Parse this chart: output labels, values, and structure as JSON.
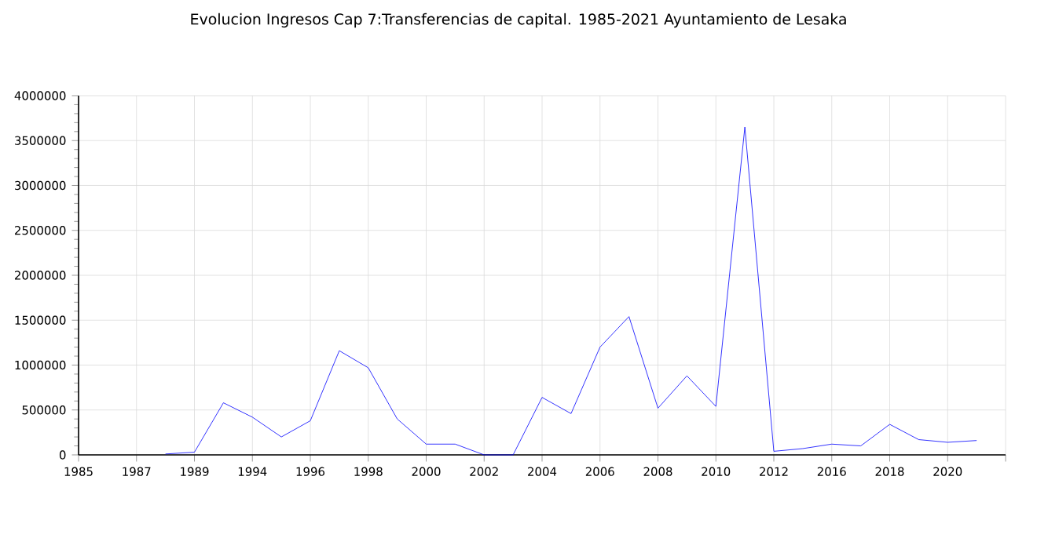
{
  "chart_data": {
    "type": "line",
    "title": "Evolucion Ingresos Cap 7:Transferencias de capital. 1985-2021 Ayuntamiento de Lesaka",
    "categories": [
      "1985",
      null,
      "1987",
      null,
      "1989",
      null,
      "1994",
      null,
      "1996",
      null,
      "1998",
      null,
      "2000",
      null,
      "2002",
      null,
      "2004",
      null,
      "2006",
      null,
      "2008",
      null,
      "2010",
      null,
      "2012",
      null,
      "2016",
      null,
      "2018",
      null,
      "2020",
      null,
      null
    ],
    "series": [
      {
        "color": "#0000ff",
        "values": [
          null,
          null,
          null,
          10000,
          30000,
          580000,
          420000,
          200000,
          380000,
          1160000,
          970000,
          400000,
          120000,
          120000,
          0,
          0,
          640000,
          460000,
          1200000,
          1540000,
          520000,
          880000,
          540000,
          3650000,
          40000,
          70000,
          120000,
          100000,
          340000,
          170000,
          140000,
          160000,
          null
        ]
      }
    ],
    "ylim": [
      0,
      4000000
    ],
    "yticks": [
      0,
      500000,
      1000000,
      1500000,
      2000000,
      2500000,
      3000000,
      3500000,
      4000000
    ],
    "grid": true,
    "marker": "none",
    "line_style": "solid"
  }
}
